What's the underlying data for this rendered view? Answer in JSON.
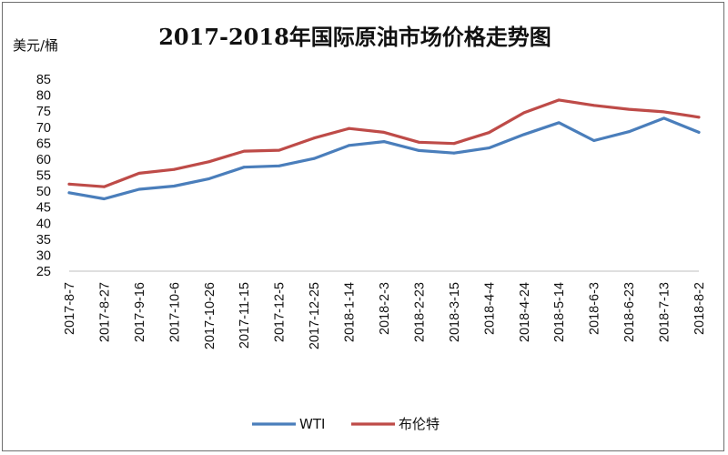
{
  "chart_data": {
    "type": "line",
    "title": "2017-2018年国际原油市场价格走势图",
    "ylabel": "美元/桶",
    "xlabel": "",
    "ylim": [
      25,
      85
    ],
    "yticks": [
      "25",
      "30",
      "35",
      "40",
      "45",
      "50",
      "55",
      "60",
      "65",
      "70",
      "75",
      "80",
      "85"
    ],
    "categories": [
      "2017-8-7",
      "2017-8-27",
      "2017-9-16",
      "2017-10-6",
      "2017-10-26",
      "2017-11-15",
      "2017-12-5",
      "2017-12-25",
      "2018-1-14",
      "2018-2-3",
      "2018-2-23",
      "2018-3-15",
      "2018-4-4",
      "2018-4-24",
      "2018-5-14",
      "2018-6-3",
      "2018-6-23",
      "2018-7-13",
      "2018-8-2"
    ],
    "legend_position": "bottom",
    "grid": false,
    "series": [
      {
        "name": "WTI",
        "color": "#4a7ebb",
        "values": [
          49.5,
          47.6,
          50.6,
          51.6,
          53.9,
          57.5,
          57.9,
          60.2,
          64.3,
          65.5,
          62.7,
          61.9,
          63.5,
          67.7,
          71.4,
          65.8,
          68.6,
          72.8,
          68.4
        ]
      },
      {
        "name": "布伦特",
        "color": "#be4b48",
        "values": [
          52.2,
          51.4,
          55.6,
          56.8,
          59.2,
          62.5,
          62.8,
          66.6,
          69.6,
          68.4,
          65.3,
          64.9,
          68.3,
          74.5,
          78.5,
          76.8,
          75.6,
          74.8,
          73.1
        ]
      }
    ]
  }
}
